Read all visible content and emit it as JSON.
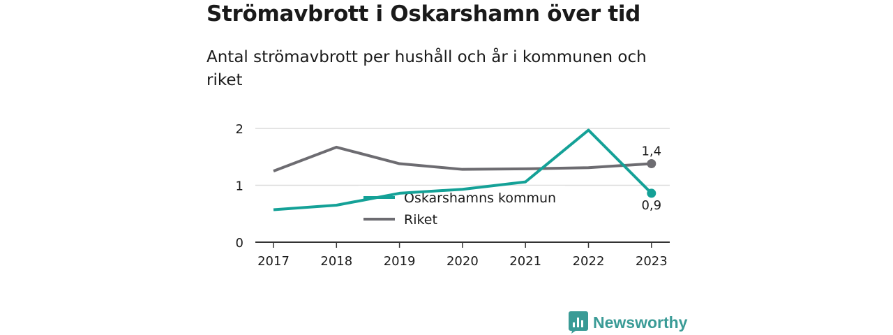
{
  "header": {
    "title": "Strömavbrott i Oskarshamn över tid",
    "subtitle": "Antal strömavbrott per hushåll och år i kommunen och riket"
  },
  "brand": {
    "name": "Newsworthy",
    "icon": "bar-chart-badge-icon",
    "color": "#3a9b96"
  },
  "chart_data": {
    "type": "line",
    "x": [
      "2017",
      "2018",
      "2019",
      "2020",
      "2021",
      "2022",
      "2023"
    ],
    "ylim": [
      0,
      2
    ],
    "yticks": [
      "0",
      "1",
      "2"
    ],
    "grid": true,
    "legend_placement": "center",
    "series": [
      {
        "name": "Oskarshamns kommun",
        "color": "#14a197",
        "values": [
          0.57,
          0.65,
          0.86,
          0.93,
          1.06,
          1.97,
          0.86
        ],
        "end_label": "0,9"
      },
      {
        "name": "Riket",
        "color": "#6d6c71",
        "values": [
          1.25,
          1.67,
          1.38,
          1.28,
          1.29,
          1.31,
          1.38
        ],
        "end_label": "1,4"
      }
    ]
  }
}
